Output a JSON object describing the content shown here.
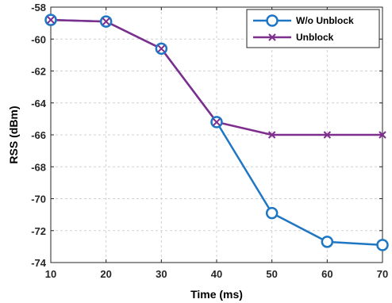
{
  "chart_data": {
    "type": "line",
    "title": "",
    "xlabel": "Time (ms)",
    "ylabel": "RSS (dBm)",
    "x": [
      10,
      20,
      30,
      40,
      50,
      60,
      70
    ],
    "xlim": [
      10,
      70
    ],
    "ylim": [
      -74,
      -58
    ],
    "xticks": [
      "10",
      "20",
      "30",
      "40",
      "50",
      "60",
      "70"
    ],
    "yticks": [
      "-58",
      "-60",
      "-62",
      "-64",
      "-66",
      "-68",
      "-70",
      "-72",
      "-74"
    ],
    "grid": true,
    "legend_position": "top-right",
    "series": [
      {
        "name": "W/o Unblock",
        "color": "#1f77c4",
        "marker": "circle",
        "values": [
          -58.8,
          -58.9,
          -60.6,
          -65.2,
          -70.9,
          -72.7,
          -72.9
        ]
      },
      {
        "name": "Unblock",
        "color": "#7e2f8e",
        "marker": "x",
        "values": [
          -58.8,
          -58.9,
          -60.6,
          -65.2,
          -66.0,
          -66.0,
          -66.0
        ]
      }
    ]
  }
}
